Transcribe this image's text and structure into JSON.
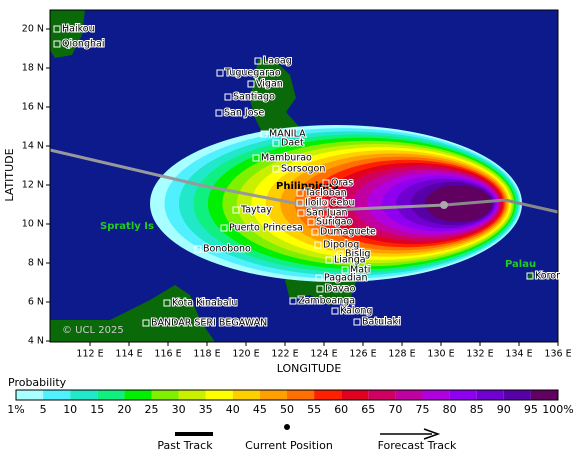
{
  "map": {
    "x_axis": {
      "label": "LONGITUDE",
      "ticks": [
        {
          "value": 112,
          "label": "112 E"
        },
        {
          "value": 114,
          "label": "114 E"
        },
        {
          "value": 116,
          "label": "116 E"
        },
        {
          "value": 118,
          "label": "118 E"
        },
        {
          "value": 120,
          "label": "120 E"
        },
        {
          "value": 122,
          "label": "122 E"
        },
        {
          "value": 124,
          "label": "124 E"
        },
        {
          "value": 126,
          "label": "126 E"
        },
        {
          "value": 128,
          "label": "128 E"
        },
        {
          "value": 130,
          "label": "130 E"
        },
        {
          "value": 132,
          "label": "132 E"
        },
        {
          "value": 134,
          "label": "134 E"
        },
        {
          "value": 136,
          "label": "136 E"
        }
      ]
    },
    "y_axis": {
      "label": "LATITUDE",
      "ticks": [
        {
          "value": 4,
          "label": "4 N"
        },
        {
          "value": 6,
          "label": "6 N"
        },
        {
          "value": 8,
          "label": "8 N"
        },
        {
          "value": 10,
          "label": "10 N"
        },
        {
          "value": 12,
          "label": "12 N"
        },
        {
          "value": 14,
          "label": "14 N"
        },
        {
          "value": 16,
          "label": "16 N"
        },
        {
          "value": 18,
          "label": "18 N"
        },
        {
          "value": 20,
          "label": "20 N"
        }
      ]
    },
    "places": [
      "Haikou",
      "Qionghai",
      "Laoag",
      "Tuguegarao",
      "Vigan",
      "Santiago",
      "San Jose",
      "MANILA",
      "Daet",
      "Mamburao",
      "Sorsogon",
      "Philippines",
      "Oras",
      "Tacloban",
      "Iloilo",
      "Cebu",
      "San Juan",
      "Surigao",
      "Dumaguete",
      "Taytay",
      "Puerto Princesa",
      "Dipolog",
      "Bislig",
      "Lianga",
      "Mati",
      "Pagadian",
      "Davao",
      "Zamboanga",
      "Kalong",
      "Batulaki",
      "Bonobono",
      "Kota Kinabalu",
      "BANDAR SERI BEGAWAN",
      "Koror"
    ],
    "regions": [
      "Spratly Is",
      "Palau"
    ],
    "copyright": "© UCL 2025",
    "legend": {
      "title": "Probability",
      "labels": [
        "1%",
        "5",
        "10",
        "15",
        "20",
        "25",
        "30",
        "35",
        "40",
        "45",
        "50",
        "55",
        "60",
        "65",
        "70",
        "75",
        "80",
        "85",
        "90",
        "95",
        "100%"
      ],
      "colors": [
        "#a8ffff",
        "#50f0ff",
        "#20e8c8",
        "#10f080",
        "#00f000",
        "#80f000",
        "#c8f000",
        "#ffff00",
        "#ffd000",
        "#ffa000",
        "#ff7000",
        "#ff2000",
        "#e00020",
        "#d00060",
        "#c000a0",
        "#b000e0",
        "#9000f0",
        "#7000d0",
        "#5800a8",
        "#600060"
      ]
    },
    "track_legend": {
      "past": "Past Track",
      "current": "Current Position",
      "forecast": "Forecast Track"
    }
  }
}
